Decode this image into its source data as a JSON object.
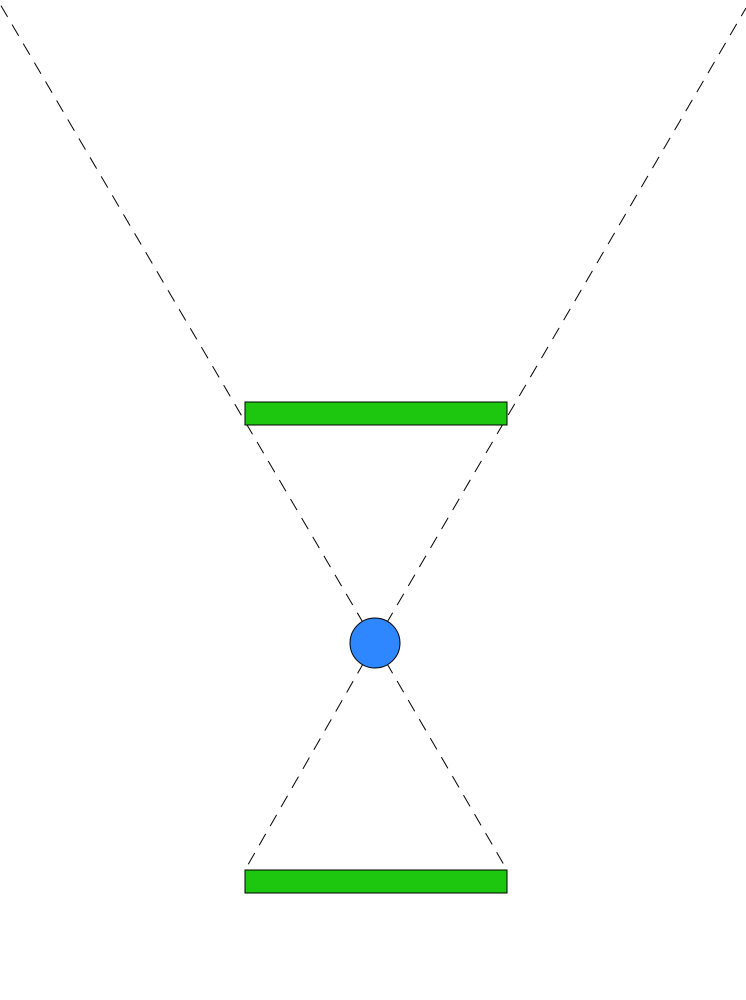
{
  "diagram": {
    "objects": [
      {
        "kind": "bar",
        "name": "upper-bar"
      },
      {
        "kind": "bar",
        "name": "lower-bar"
      },
      {
        "kind": "point",
        "name": "center-point"
      }
    ],
    "line_style": "dashed"
  },
  "colors": {
    "bar_fill": "#1dc70f",
    "point_fill": "#2e87ff",
    "line": "#000000",
    "background": "#ffffff"
  }
}
